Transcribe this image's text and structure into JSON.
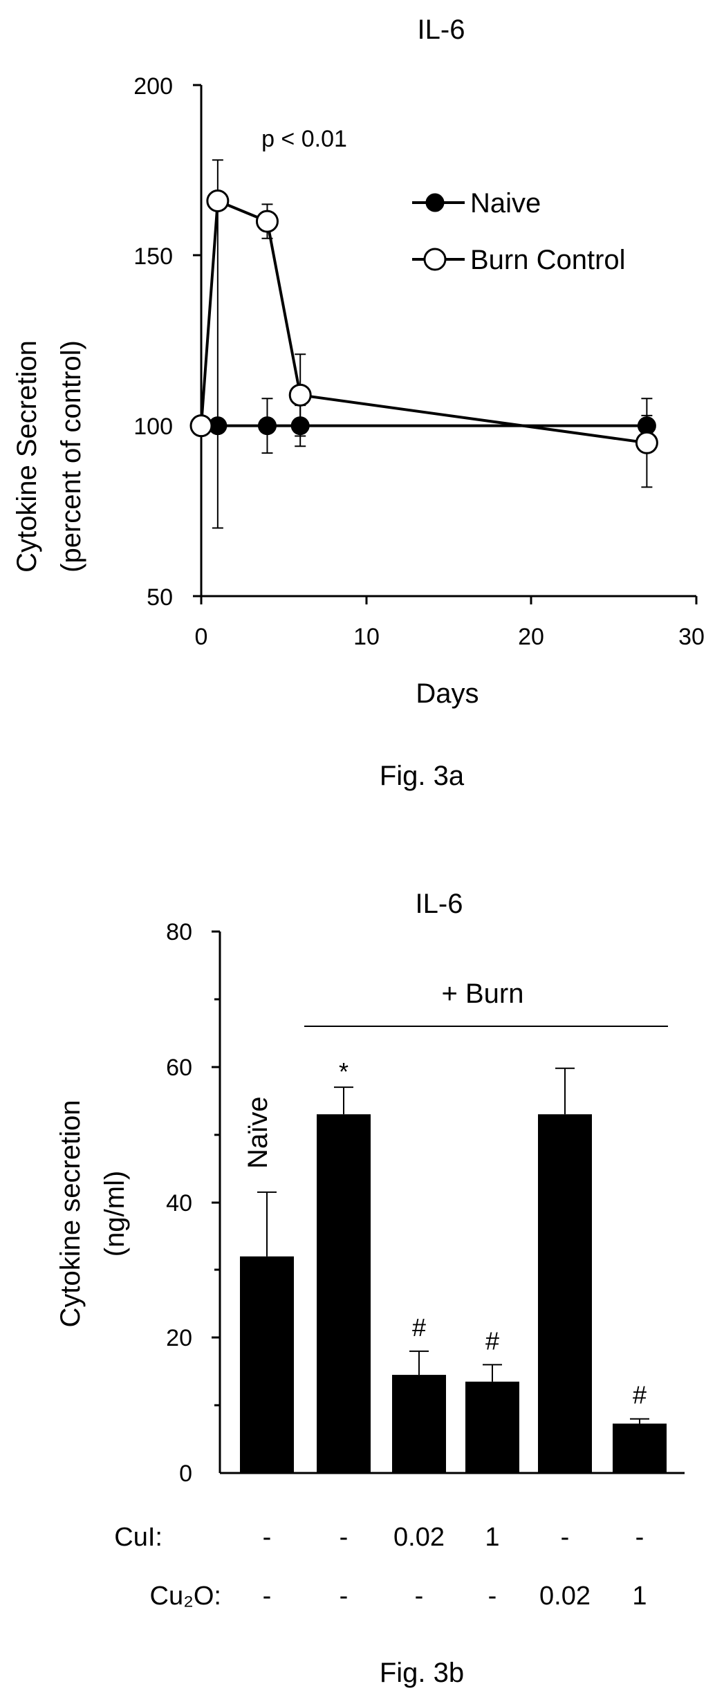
{
  "chart_data": [
    {
      "type": "line",
      "title": "IL-6",
      "xlabel": "Days",
      "ylabel": [
        "Cytokine Secretion",
        "(percent of control)"
      ],
      "xlim": [
        0,
        30
      ],
      "ylim": [
        50,
        200
      ],
      "xticks": [
        "0",
        "10",
        "20",
        "30"
      ],
      "yticks": [
        "200",
        "150",
        "100",
        "50"
      ],
      "annotation": "p < 0.01",
      "legend_position": "top-right",
      "series": [
        {
          "name": "Naive",
          "marker": "filled-circle",
          "x": [
            0,
            1,
            4,
            6,
            27
          ],
          "y": [
            100,
            100,
            100,
            100,
            100
          ],
          "error": [
            0,
            0,
            8,
            6,
            3
          ]
        },
        {
          "name": "Burn Control",
          "marker": "open-circle",
          "x": [
            0,
            1,
            4,
            6,
            27
          ],
          "y": [
            100,
            166,
            160,
            109,
            95
          ],
          "error": [
            0,
            12,
            5,
            12,
            13
          ],
          "error_low": [
            0,
            96,
            5,
            12,
            13
          ]
        }
      ],
      "caption": "Fig. 3a"
    },
    {
      "type": "bar",
      "title": "IL-6",
      "ylabel": [
        "Cytokine secretion",
        "(ng/ml)"
      ],
      "ylim": [
        0,
        80
      ],
      "yticks": [
        "80",
        "60",
        "40",
        "20",
        "0"
      ],
      "group_label": "+ Burn",
      "bar_label": "Naïve",
      "values": [
        32,
        53,
        14.5,
        13.5,
        53,
        7.3
      ],
      "errors": [
        9.5,
        4,
        3.5,
        2.5,
        6.8,
        0.7
      ],
      "significance": [
        "",
        "*",
        "#",
        "#",
        "",
        "#"
      ],
      "row_labels": [
        "CuI:",
        "Cu₂O:"
      ],
      "cui": [
        "-",
        "-",
        "0.02",
        "1",
        "-",
        "-"
      ],
      "cu2o": [
        "-",
        "-",
        "-",
        "-",
        "0.02",
        "1"
      ],
      "caption": "Fig. 3b"
    }
  ]
}
